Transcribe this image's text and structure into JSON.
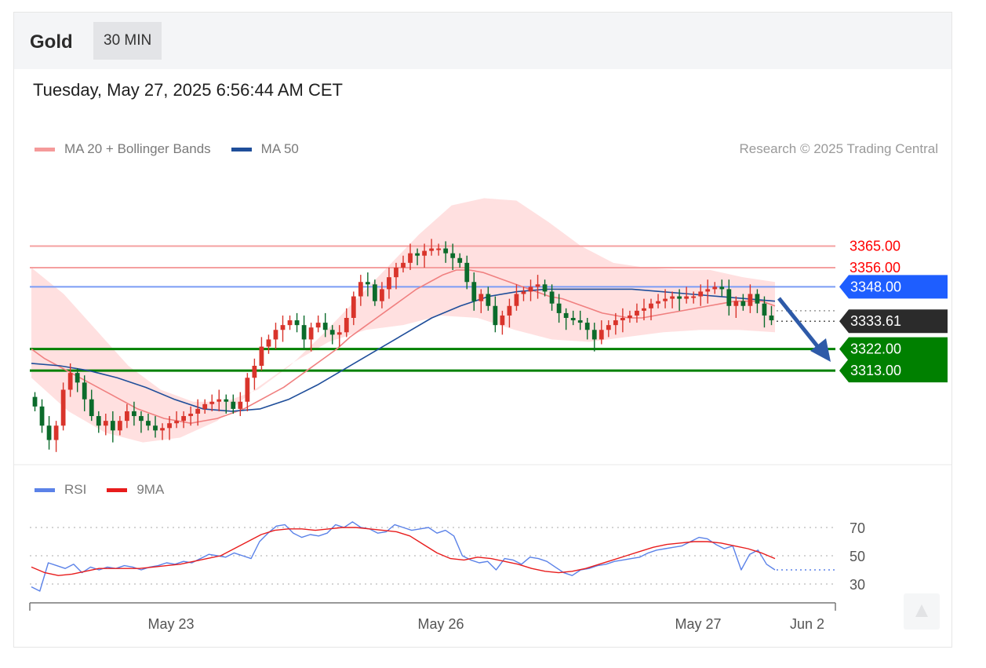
{
  "header": {
    "symbol": "Gold",
    "timeframe": "30 MIN"
  },
  "datetime": "Tuesday, May 27, 2025 6:56:44 AM CET",
  "legend": {
    "ma20": "MA 20 + Bollinger Bands",
    "ma50": "MA 50",
    "rsi": "RSI",
    "ma9": "9MA",
    "credit": "Research © 2025 Trading Central"
  },
  "colors": {
    "ma20": "#f08080",
    "ma50": "#1f4e9a",
    "bands": "#ffd6d6",
    "resistance": "#ff0000",
    "support": "#008000",
    "pivot": "#1e5eff",
    "current": "#2b2b2b",
    "arrow": "#2e5aa8",
    "rsi": "#5b82e8",
    "ma9": "#e81c1c",
    "up": "#d9342b",
    "down": "#0b6b2b"
  },
  "chart_data": [
    {
      "type": "candlestick",
      "title": "Gold 30 MIN",
      "ylim": [
        3275,
        3395
      ],
      "x_labels": [
        "May 23",
        "May 26",
        "May 27",
        "Jun 2"
      ],
      "levels": [
        {
          "label": "3365.00",
          "value": 3365,
          "kind": "resistance"
        },
        {
          "label": "3356.00",
          "value": 3356,
          "kind": "resistance"
        },
        {
          "label": "3348.00",
          "value": 3348,
          "kind": "pivot"
        },
        {
          "label": "3333.61",
          "value": 3333.61,
          "kind": "current"
        },
        {
          "label": "3322.00",
          "value": 3322,
          "kind": "support"
        },
        {
          "label": "3313.00",
          "value": 3313,
          "kind": "support"
        }
      ],
      "closes": [
        3298,
        3290,
        3284,
        3290,
        3305,
        3312,
        3308,
        3301,
        3294,
        3290,
        3292,
        3288,
        3292,
        3296,
        3294,
        3292,
        3290,
        3288,
        3289,
        3291,
        3292,
        3294,
        3295,
        3297,
        3299,
        3300,
        3301,
        3300,
        3297,
        3300,
        3310,
        3315,
        3323,
        3326,
        3330,
        3332,
        3334,
        3332,
        3326,
        3331,
        3333,
        3330,
        3328,
        3329,
        3335,
        3344,
        3350,
        3349,
        3342,
        3347,
        3352,
        3356,
        3358,
        3362,
        3361,
        3363,
        3364,
        3364,
        3362,
        3360,
        3358,
        3350,
        3342,
        3345,
        3340,
        3332,
        3336,
        3340,
        3345,
        3346,
        3348,
        3349,
        3346,
        3341,
        3337,
        3335,
        3334,
        3333,
        3330,
        3326,
        3330,
        3332,
        3334,
        3335,
        3336,
        3338,
        3339,
        3341,
        3342,
        3343,
        3344,
        3343,
        3344,
        3344,
        3346,
        3347,
        3348,
        3347,
        3340,
        3342,
        3340,
        3345,
        3341,
        3336,
        3334
      ],
      "ma20": [
        3322,
        3318,
        3315,
        3312,
        3309,
        3306,
        3303,
        3300,
        3297,
        3295,
        3293,
        3292,
        3291,
        3292,
        3293,
        3295,
        3297,
        3300,
        3303,
        3306,
        3310,
        3314,
        3318,
        3322,
        3327,
        3331,
        3335,
        3339,
        3343,
        3347,
        3350,
        3353,
        3355,
        3355,
        3354,
        3352,
        3350,
        3348,
        3346,
        3344,
        3343,
        3341,
        3339,
        3337,
        3336,
        3335,
        3335,
        3336,
        3337,
        3338,
        3339,
        3340,
        3341,
        3342,
        3342,
        3342,
        3340
      ],
      "ma50": [
        3316,
        3315,
        3313,
        3310,
        3306,
        3301,
        3297,
        3296,
        3297,
        3301,
        3307,
        3314,
        3321,
        3328,
        3335,
        3340,
        3344,
        3346,
        3347,
        3347,
        3347,
        3347,
        3346,
        3345,
        3344,
        3343,
        3342
      ],
      "bollinger_upper": [
        3356,
        3345,
        3330,
        3315,
        3305,
        3300,
        3300,
        3305,
        3315,
        3328,
        3342,
        3356,
        3370,
        3382,
        3385,
        3384,
        3375,
        3365,
        3358,
        3356,
        3355,
        3355,
        3352,
        3350
      ],
      "bollinger_lower": [
        3310,
        3296,
        3287,
        3283,
        3285,
        3292,
        3305,
        3316,
        3325,
        3330,
        3332,
        3336,
        3335,
        3330,
        3326,
        3325,
        3327,
        3329,
        3330,
        3330,
        3329
      ]
    },
    {
      "type": "line",
      "title": "RSI",
      "ylim": [
        20,
        85
      ],
      "yticks": [
        "70",
        "50",
        "30"
      ],
      "series": [
        {
          "name": "RSI",
          "values": [
            28,
            25,
            45,
            43,
            41,
            44,
            38,
            42,
            40,
            42,
            41,
            43,
            42,
            40,
            42,
            43,
            45,
            44,
            46,
            45,
            48,
            51,
            50,
            49,
            52,
            50,
            48,
            60,
            66,
            71,
            72,
            66,
            63,
            65,
            64,
            66,
            72,
            70,
            74,
            70,
            69,
            66,
            67,
            72,
            70,
            68,
            69,
            70,
            66,
            68,
            64,
            50,
            47,
            45,
            46,
            40,
            48,
            47,
            44,
            49,
            48,
            46,
            42,
            38,
            36,
            40,
            41,
            43,
            44,
            46,
            47,
            48,
            49,
            52,
            54,
            55,
            56,
            57,
            60,
            63,
            62,
            58,
            55,
            57,
            40,
            51,
            54,
            44,
            40
          ]
        },
        {
          "name": "9MA",
          "values": [
            42,
            38,
            36,
            37,
            39,
            41,
            41,
            41,
            41,
            42,
            43,
            44,
            46,
            48,
            50,
            55,
            60,
            65,
            68,
            69,
            69,
            68,
            69,
            70,
            70,
            69,
            68,
            67,
            64,
            58,
            52,
            48,
            47,
            49,
            48,
            46,
            44,
            41,
            39,
            38,
            39,
            41,
            44,
            47,
            50,
            53,
            56,
            58,
            59,
            60,
            60,
            59,
            57,
            55,
            52,
            48
          ]
        }
      ]
    }
  ]
}
